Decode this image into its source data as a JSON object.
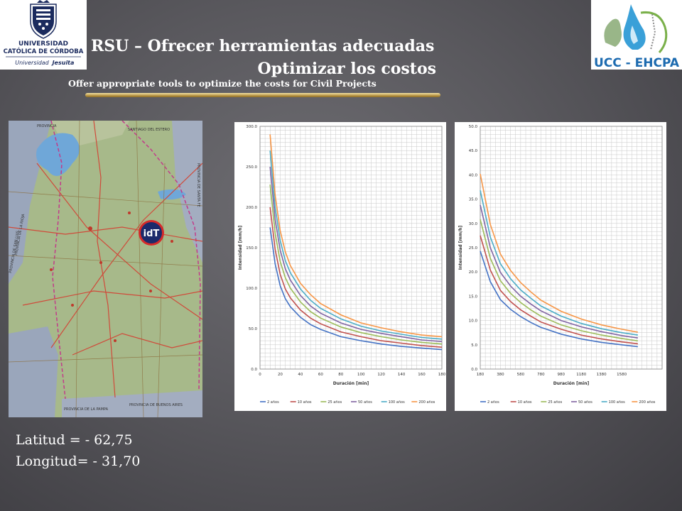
{
  "header": {
    "title_line1": "RSU – Ofrecer herramientas adecuadas",
    "title_line2": "Optimizar los costos",
    "subtitle": "Offer appropriate tools  to optimize the costs for Civil Projects"
  },
  "logo_left": {
    "line1": "UNIVERSIDAD",
    "line2": "CATÓLICA DE CÓRDOBA",
    "line3": "Universidad",
    "line4": "Jesuita"
  },
  "logo_right": {
    "text": "UCC - EHCPA"
  },
  "map": {
    "marker_label": "idT",
    "labels": {
      "provincia_top": "PROVINCIA",
      "santiago": "SANTIAGO DEL ESTERO",
      "santa_fe": "PROVINCIA DE SANTA FE",
      "la_rioja": "PROVINCIA DE LA RIOJA",
      "san_luis": "PROVINCIA DE SAN LUIS",
      "buenos_aires": "PROVINCIA DE BUENOS AIRES",
      "la_pampa": "PROVINCIA DE LA PAMPA"
    },
    "colors": {
      "land": "#a7b98a",
      "province": "#b5c79a",
      "outside": "#8f9bb0",
      "water": "#6fa7d8"
    }
  },
  "coords": {
    "latitud": "Latitud   = - 62,75",
    "longitud": "Longitud= - 31,70"
  },
  "chart_data": [
    {
      "type": "line",
      "xlabel": "Duración [min]",
      "ylabel": "Intensidad [mm/h]",
      "xlim": [
        0,
        180
      ],
      "ylim": [
        0,
        300
      ],
      "x_ticks": [
        "0",
        "20",
        "40",
        "60",
        "80",
        "100",
        "120",
        "140",
        "160",
        "180"
      ],
      "y_ticks": [
        "0.0",
        "50.0",
        "100.0",
        "150.0",
        "200.0",
        "250.0",
        "300.0"
      ],
      "x": [
        10,
        15,
        20,
        25,
        30,
        40,
        50,
        60,
        80,
        100,
        120,
        140,
        160,
        180
      ],
      "series": [
        {
          "name": "2 años",
          "color": "#4472c4",
          "values": [
            175,
            130,
            103,
            87,
            77,
            64,
            55,
            49,
            40,
            35,
            31,
            28,
            26,
            24
          ]
        },
        {
          "name": "10 años",
          "color": "#c0504d",
          "values": [
            200,
            148,
            117,
            99,
            88,
            73,
            63,
            56,
            46,
            40,
            35,
            32,
            29,
            27
          ]
        },
        {
          "name": "25 años",
          "color": "#9bbb59",
          "values": [
            228,
            168,
            133,
            113,
            100,
            83,
            71,
            63,
            52,
            45,
            40,
            36,
            33,
            31
          ]
        },
        {
          "name": "50 años",
          "color": "#8064a2",
          "values": [
            250,
            185,
            147,
            124,
            110,
            91,
            78,
            69,
            57,
            49,
            44,
            40,
            36,
            34
          ]
        },
        {
          "name": "100 años",
          "color": "#4bacc6",
          "values": [
            270,
            200,
            159,
            134,
            119,
            99,
            85,
            75,
            62,
            53,
            47,
            43,
            39,
            37
          ]
        },
        {
          "name": "200 años",
          "color": "#f79646",
          "values": [
            290,
            215,
            171,
            145,
            128,
            106,
            92,
            81,
            67,
            57,
            51,
            46,
            42,
            40
          ]
        }
      ]
    },
    {
      "type": "line",
      "xlabel": "Duración [min]",
      "ylabel": "Intensidad [mm/h]",
      "xlim": [
        180,
        1980
      ],
      "ylim": [
        0,
        50
      ],
      "x_ticks": [
        "180",
        "380",
        "580",
        "780",
        "980",
        "1180",
        "1380",
        "1580"
      ],
      "y_ticks": [
        "0.0",
        "5.0",
        "10.0",
        "15.0",
        "20.0",
        "25.0",
        "30.0",
        "35.0",
        "40.0",
        "45.0",
        "50.0"
      ],
      "x": [
        180,
        280,
        380,
        480,
        580,
        680,
        780,
        980,
        1180,
        1380,
        1580,
        1740
      ],
      "series": [
        {
          "name": "2 años",
          "color": "#4472c4",
          "values": [
            24.3,
            18.0,
            14.3,
            12.3,
            10.8,
            9.6,
            8.6,
            7.2,
            6.2,
            5.5,
            5.0,
            4.6
          ]
        },
        {
          "name": "10 años",
          "color": "#c0504d",
          "values": [
            27.5,
            20.4,
            16.2,
            13.9,
            12.2,
            10.9,
            9.7,
            8.2,
            7.0,
            6.2,
            5.6,
            5.2
          ]
        },
        {
          "name": "25 años",
          "color": "#9bbb59",
          "values": [
            30.8,
            22.8,
            18.2,
            15.6,
            13.7,
            12.2,
            10.9,
            9.1,
            7.9,
            7.0,
            6.3,
            5.8
          ]
        },
        {
          "name": "50 años",
          "color": "#8064a2",
          "values": [
            33.8,
            25.0,
            19.9,
            17.1,
            15.0,
            13.4,
            12.0,
            10.0,
            8.7,
            7.7,
            6.9,
            6.4
          ]
        },
        {
          "name": "100 años",
          "color": "#4bacc6",
          "values": [
            36.8,
            27.2,
            21.7,
            18.6,
            16.3,
            14.6,
            13.0,
            10.9,
            9.4,
            8.3,
            7.5,
            7.0
          ]
        },
        {
          "name": "200 años",
          "color": "#f79646",
          "values": [
            40.2,
            29.8,
            23.7,
            20.3,
            17.8,
            15.9,
            14.2,
            11.9,
            10.3,
            9.1,
            8.2,
            7.6
          ]
        }
      ]
    }
  ]
}
